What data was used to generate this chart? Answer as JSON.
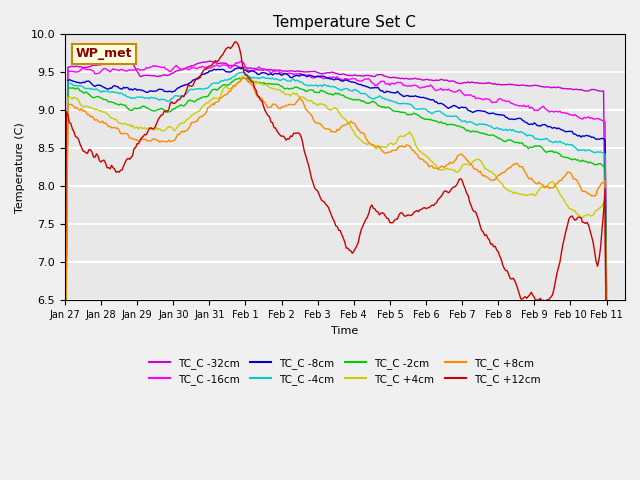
{
  "title": "Temperature Set C",
  "xlabel": "Time",
  "ylabel": "Temperature (C)",
  "ylim": [
    6.5,
    10.0
  ],
  "xlim_days": 15.5,
  "date_labels": [
    "Jan 27",
    "Jan 28",
    "Jan 29",
    "Jan 30",
    "Jan 31",
    "Feb 1",
    "Feb 2",
    "Feb 3",
    "Feb 4",
    "Feb 5",
    "Feb 6",
    "Feb 7",
    "Feb 8",
    "Feb 9",
    "Feb 10",
    "Feb 11"
  ],
  "wp_met_label": "WP_met",
  "background_color": "#f0f0f0",
  "plot_bg_color": "#e8e8e8",
  "grid_color": "#ffffff",
  "series": [
    {
      "label": "TC_C -32cm",
      "color": "#cc00cc"
    },
    {
      "label": "TC_C -16cm",
      "color": "#ff00ff"
    },
    {
      "label": "TC_C -8cm",
      "color": "#0000cc"
    },
    {
      "label": "TC_C -4cm",
      "color": "#00cccc"
    },
    {
      "label": "TC_C -2cm",
      "color": "#00cc00"
    },
    {
      "label": "TC_C +4cm",
      "color": "#cccc00"
    },
    {
      "label": "TC_C +8cm",
      "color": "#ff8800"
    },
    {
      "label": "TC_C +12cm",
      "color": "#cc0000"
    }
  ]
}
